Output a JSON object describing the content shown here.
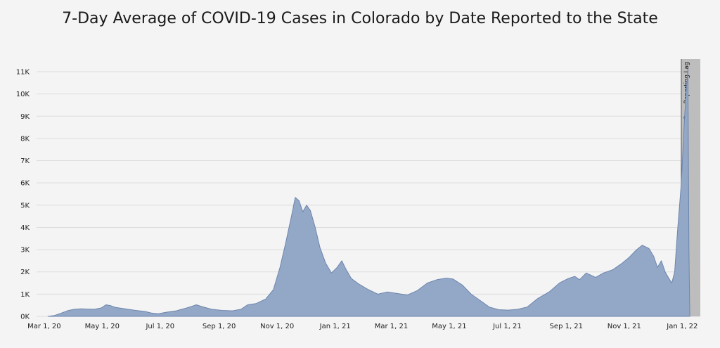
{
  "chart_data": {
    "type": "area",
    "title": "7-Day Average of COVID-19 Cases in Colorado by Date Reported to the State",
    "xlabel": "",
    "ylabel": "",
    "ylim": [
      0,
      11000
    ],
    "y_ticks": [
      {
        "value": 0,
        "label": "0K"
      },
      {
        "value": 1000,
        "label": "1K"
      },
      {
        "value": 2000,
        "label": "2K"
      },
      {
        "value": 3000,
        "label": "3K"
      },
      {
        "value": 4000,
        "label": "4K"
      },
      {
        "value": 5000,
        "label": "5K"
      },
      {
        "value": 6000,
        "label": "6K"
      },
      {
        "value": 7000,
        "label": "7K"
      },
      {
        "value": 8000,
        "label": "8K"
      },
      {
        "value": 9000,
        "label": "9K"
      },
      {
        "value": 10000,
        "label": "10K"
      },
      {
        "value": 11000,
        "label": "11K"
      }
    ],
    "xlim": [
      "2020-02-22",
      "2022-01-20"
    ],
    "x_ticks": [
      {
        "date": "2020-03-01",
        "label": "Mar 1, 20"
      },
      {
        "date": "2020-05-01",
        "label": "May 1, 20"
      },
      {
        "date": "2020-07-01",
        "label": "Jul 1, 20"
      },
      {
        "date": "2020-09-01",
        "label": "Sep 1, 20"
      },
      {
        "date": "2020-11-01",
        "label": "Nov 1, 20"
      },
      {
        "date": "2021-01-01",
        "label": "Jan 1, 21"
      },
      {
        "date": "2021-03-01",
        "label": "Mar 1, 21"
      },
      {
        "date": "2021-05-01",
        "label": "May 1, 21"
      },
      {
        "date": "2021-07-01",
        "label": "Jul 1, 21"
      },
      {
        "date": "2021-09-01",
        "label": "Sep 1, 21"
      },
      {
        "date": "2021-11-01",
        "label": "Nov 1, 21"
      },
      {
        "date": "2022-01-01",
        "label": "Jan 1, 22"
      }
    ],
    "grid": true,
    "annotation": {
      "label": "Case Reporting Lag",
      "start": "2021-12-31",
      "end": "2022-01-20"
    },
    "colors": {
      "area_fill": "#93a7c7",
      "area_line": "#6d86ad",
      "lag_fill": "#bdbdbd",
      "background": "#f4f4f4"
    },
    "series": [
      {
        "points": [
          [
            "2020-03-05",
            0
          ],
          [
            "2020-03-12",
            40
          ],
          [
            "2020-03-19",
            150
          ],
          [
            "2020-03-26",
            260
          ],
          [
            "2020-04-02",
            320
          ],
          [
            "2020-04-09",
            340
          ],
          [
            "2020-04-16",
            330
          ],
          [
            "2020-04-23",
            320
          ],
          [
            "2020-04-30",
            380
          ],
          [
            "2020-05-05",
            520
          ],
          [
            "2020-05-10",
            480
          ],
          [
            "2020-05-15",
            400
          ],
          [
            "2020-05-25",
            340
          ],
          [
            "2020-06-05",
            270
          ],
          [
            "2020-06-15",
            220
          ],
          [
            "2020-06-22",
            150
          ],
          [
            "2020-06-29",
            120
          ],
          [
            "2020-07-08",
            190
          ],
          [
            "2020-07-18",
            250
          ],
          [
            "2020-07-28",
            370
          ],
          [
            "2020-08-03",
            450
          ],
          [
            "2020-08-08",
            520
          ],
          [
            "2020-08-14",
            440
          ],
          [
            "2020-08-24",
            320
          ],
          [
            "2020-09-04",
            270
          ],
          [
            "2020-09-15",
            250
          ],
          [
            "2020-09-24",
            320
          ],
          [
            "2020-10-01",
            520
          ],
          [
            "2020-10-10",
            580
          ],
          [
            "2020-10-20",
            780
          ],
          [
            "2020-10-28",
            1200
          ],
          [
            "2020-11-04",
            2200
          ],
          [
            "2020-11-10",
            3300
          ],
          [
            "2020-11-16",
            4500
          ],
          [
            "2020-11-20",
            5350
          ],
          [
            "2020-11-24",
            5200
          ],
          [
            "2020-11-28",
            4700
          ],
          [
            "2020-12-02",
            5000
          ],
          [
            "2020-12-06",
            4750
          ],
          [
            "2020-12-11",
            4000
          ],
          [
            "2020-12-16",
            3100
          ],
          [
            "2020-12-22",
            2400
          ],
          [
            "2020-12-28",
            1950
          ],
          [
            "2021-01-03",
            2200
          ],
          [
            "2021-01-08",
            2500
          ],
          [
            "2021-01-12",
            2150
          ],
          [
            "2021-01-18",
            1700
          ],
          [
            "2021-01-26",
            1450
          ],
          [
            "2021-02-05",
            1200
          ],
          [
            "2021-02-15",
            1000
          ],
          [
            "2021-02-25",
            1100
          ],
          [
            "2021-03-07",
            1030
          ],
          [
            "2021-03-18",
            960
          ],
          [
            "2021-03-28",
            1150
          ],
          [
            "2021-04-08",
            1500
          ],
          [
            "2021-04-18",
            1650
          ],
          [
            "2021-04-28",
            1720
          ],
          [
            "2021-05-05",
            1680
          ],
          [
            "2021-05-15",
            1400
          ],
          [
            "2021-05-24",
            1000
          ],
          [
            "2021-06-03",
            700
          ],
          [
            "2021-06-12",
            420
          ],
          [
            "2021-06-22",
            300
          ],
          [
            "2021-07-02",
            280
          ],
          [
            "2021-07-12",
            320
          ],
          [
            "2021-07-22",
            420
          ],
          [
            "2021-08-02",
            800
          ],
          [
            "2021-08-14",
            1100
          ],
          [
            "2021-08-25",
            1500
          ],
          [
            "2021-09-03",
            1700
          ],
          [
            "2021-09-10",
            1800
          ],
          [
            "2021-09-15",
            1650
          ],
          [
            "2021-09-22",
            1950
          ],
          [
            "2021-10-02",
            1750
          ],
          [
            "2021-10-10",
            1950
          ],
          [
            "2021-10-20",
            2100
          ],
          [
            "2021-10-30",
            2400
          ],
          [
            "2021-11-06",
            2650
          ],
          [
            "2021-11-14",
            3000
          ],
          [
            "2021-11-20",
            3200
          ],
          [
            "2021-11-27",
            3050
          ],
          [
            "2021-12-02",
            2700
          ],
          [
            "2021-12-06",
            2200
          ],
          [
            "2021-12-10",
            2500
          ],
          [
            "2021-12-14",
            2000
          ],
          [
            "2021-12-18",
            1700
          ],
          [
            "2021-12-21",
            1500
          ],
          [
            "2021-12-24",
            2000
          ],
          [
            "2021-12-27",
            3800
          ],
          [
            "2021-12-31",
            6000
          ],
          [
            "2022-01-03",
            8600
          ],
          [
            "2022-01-05",
            10000
          ],
          [
            "2022-01-07",
            11100
          ],
          [
            "2022-01-08",
            3000
          ],
          [
            "2022-01-09",
            0
          ]
        ]
      }
    ]
  }
}
